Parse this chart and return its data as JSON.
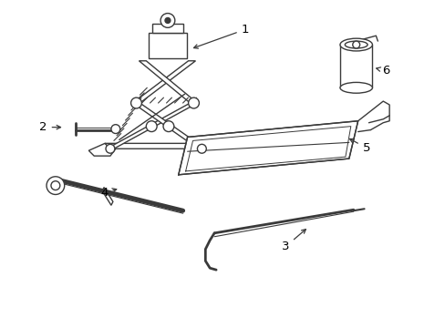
{
  "bg_color": "#ffffff",
  "line_color": "#3a3a3a",
  "lw": 1.0,
  "figsize": [
    4.89,
    3.6
  ],
  "dpi": 100
}
